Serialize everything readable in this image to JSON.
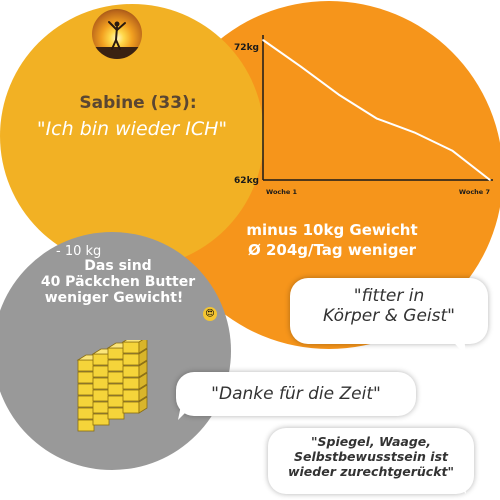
{
  "profile": {
    "name": "Sabine (33):",
    "quote": "\"Ich bin wieder ICH\"",
    "avatar_icon": "person-sunset-photo"
  },
  "chart_data": {
    "type": "line",
    "title": "",
    "xlabel": "",
    "ylabel": "",
    "x_tick_labels": [
      "Woche 1",
      "Woche 7"
    ],
    "y_tick_labels": [
      "72kg",
      "62kg"
    ],
    "x": [
      1,
      2,
      3,
      4,
      5,
      6,
      7
    ],
    "series": [
      {
        "values": [
          72,
          70.1,
          68.1,
          66.4,
          65.4,
          64.1,
          62
        ]
      }
    ],
    "xlim": [
      1,
      7
    ],
    "ylim": [
      62,
      72
    ],
    "grid": false,
    "line_color": "#ffffff",
    "axis_color": "#1a1a1a"
  },
  "stats": {
    "weight_loss": "minus 10kg Gewicht",
    "daily_loss": "Ø 204g/Tag weniger"
  },
  "butter": {
    "kg": "- 10 kg",
    "line1": "Das sind",
    "line2": "40 Päckchen Butter",
    "line3": "weniger Gewicht!",
    "emoji_icon": "heart-eyes-emoji-icon",
    "stack_icon": "butter-packages-icon"
  },
  "bubbles": {
    "b1_line1": "\"fitter in",
    "b1_line2": "Körper & Geist\"",
    "b2": "\"Danke für die Zeit\"",
    "b3_line1": "\"Spiegel, Waage,",
    "b3_line2": "Selbstbewusstsein ist",
    "b3_line3": "wieder zurechtgerückt\""
  },
  "colors": {
    "orange": "#f6951b",
    "yellow": "#f2b124",
    "gray": "#999999",
    "name_brown": "#5a4632"
  }
}
